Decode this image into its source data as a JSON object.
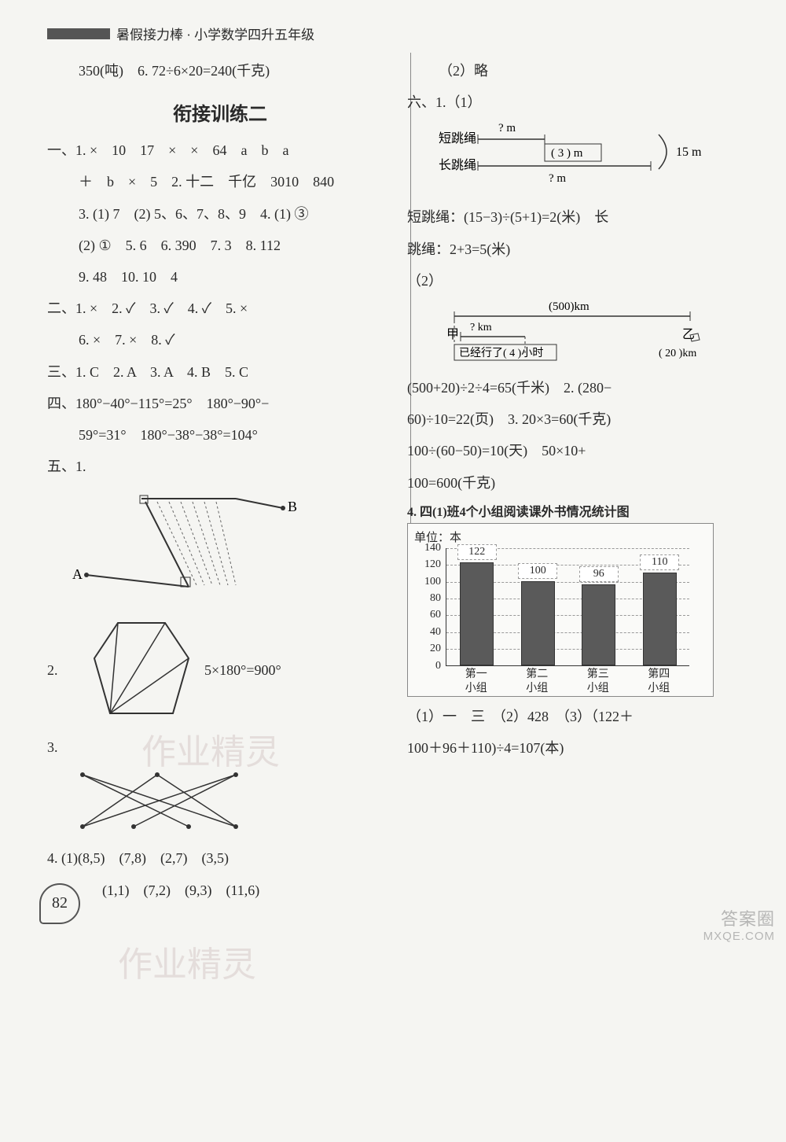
{
  "header": {
    "title": "暑假接力棒 · 小学数学四升五年级"
  },
  "left": {
    "top_line": "350(吨)　6. 72÷6×20=240(千克)",
    "section_title": "衔接训练二",
    "q1": {
      "l1": "一、1. ×　10　17　×　×　64　a　b　a",
      "l2": "＋　b　×　5　2. 十二　千亿　3010　840",
      "l3": "3. (1) 7　(2) 5、6、7、8、9　4. (1) ③",
      "l4": "(2) ①　5. 6　6. 390　7. 3　8. 112",
      "l5": "9. 48　10. 10　4"
    },
    "q2": {
      "l1": "二、1. ×　2. ✓　3. ✓　4. ✓　5. ×",
      "l2": "6. ×　7. ×　8. ✓"
    },
    "q3": "三、1. C　2. A　3. A　4. B　5. C",
    "q4": {
      "l1": "四、180°−40°−115°=25°　180°−90°−",
      "l2": "59°=31°　180°−38°−38°=104°"
    },
    "q5": {
      "label1": "五、1.",
      "pt_A": "A",
      "pt_B": "B",
      "label2": "2.",
      "eq2": "5×180°=900°",
      "label3": "3.",
      "label4": "4.",
      "l4a": "(1)(8,5)　(7,8)　(2,7)　(3,5)",
      "l4b": "(1,1)　(7,2)　(9,3)　(11,6)"
    }
  },
  "right": {
    "l0": "（2）略",
    "q6": {
      "label": "六、1.（1）",
      "diag": {
        "short": "短跳绳",
        "long": "长跳绳",
        "qm": "? m",
        "three": "( 3 ) m",
        "h": "15 m"
      },
      "l1": "短跳绳：(15−3)÷(5+1)=2(米)　长",
      "l2": "跳绳：2+3=5(米)",
      "l3": "（2）",
      "diag2": {
        "d500": "(500)km",
        "qkm": "? km",
        "jia": "甲",
        "yi": "乙",
        "yx": "已经行了( 4 )小时",
        "d20": "( 20 )km"
      },
      "l4": "(500+20)÷2÷4=65(千米)　2. (280−",
      "l5": "60)÷10=22(页)　3. 20×3=60(千克)",
      "l6": "100÷(60−50)=10(天)　50×10+",
      "l7": "100=600(千克)"
    },
    "q4": {
      "title": "4. 四(1)班4个小组阅读课外书情况统计图",
      "unit": "单位：本",
      "chart": {
        "categories": [
          "第一\n小组",
          "第二\n小组",
          "第三\n小组",
          "第四\n小组"
        ],
        "values": [
          122,
          100,
          96,
          110
        ],
        "ymax": 140,
        "ytick": 20,
        "bar_color": "#5a5a5a",
        "grid_color": "#999999",
        "bg": "#fafaf8"
      },
      "ans1": "（1）一　三　（2）428　（3）（122＋",
      "ans2": "100＋96＋110)÷4=107(本)"
    }
  },
  "watermarks": {
    "w1": "作业精灵",
    "w2": "作业精灵",
    "br1": "答案圈",
    "br2": "MXQE.COM"
  },
  "page_number": "82"
}
